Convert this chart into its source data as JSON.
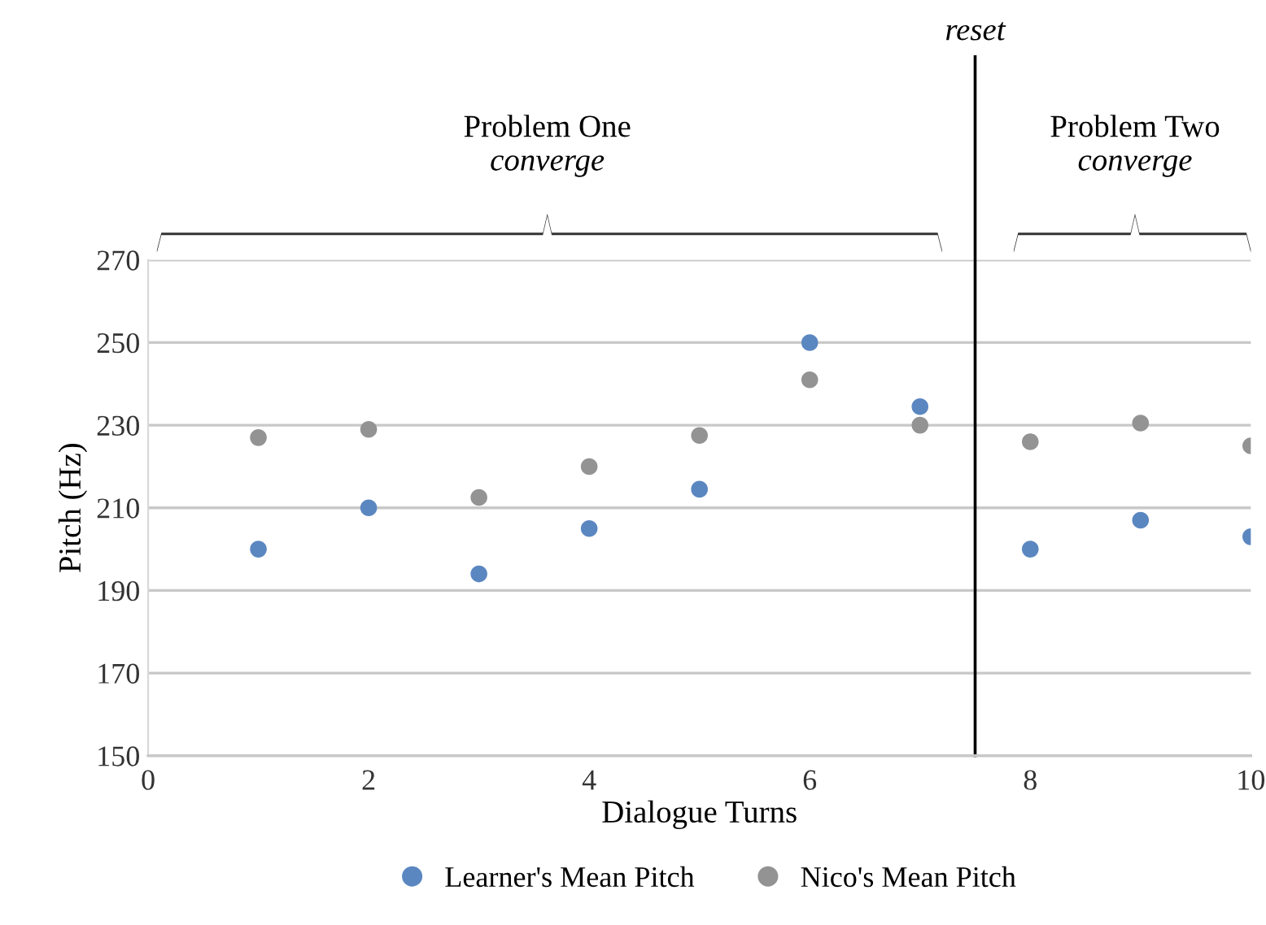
{
  "chart_data": {
    "type": "scatter",
    "xlabel": "Dialogue Turns",
    "ylabel": "Pitch (Hz)",
    "xlim": [
      0,
      10
    ],
    "xticks": [
      0,
      2,
      4,
      6,
      8,
      10
    ],
    "ylim": [
      150,
      270
    ],
    "yticks": [
      150,
      170,
      190,
      210,
      230,
      250,
      270
    ],
    "grid": "y",
    "legend": "bottom",
    "marker": "circle",
    "series": [
      {
        "name": "Learner's Mean Pitch",
        "color": "#5b87c1",
        "x": [
          1,
          2,
          3,
          4,
          5,
          6,
          7,
          8,
          9,
          10
        ],
        "values": [
          200,
          210,
          194,
          205,
          214.5,
          250,
          234.5,
          200,
          207,
          203
        ]
      },
      {
        "name": "Nico's Mean Pitch",
        "color": "#939393",
        "x": [
          1,
          2,
          3,
          4,
          5,
          6,
          7,
          8,
          9,
          10
        ],
        "values": [
          227,
          229,
          212.5,
          220,
          227.5,
          241,
          230,
          226,
          230.5,
          225
        ]
      }
    ],
    "ref_lines": [
      {
        "axis": "x",
        "value": 7.5,
        "label": "reset",
        "color": "#000000",
        "line_style": "solid"
      }
    ],
    "annotations": [
      "Problem One",
      "converge",
      "Problem Two",
      "converge"
    ]
  }
}
